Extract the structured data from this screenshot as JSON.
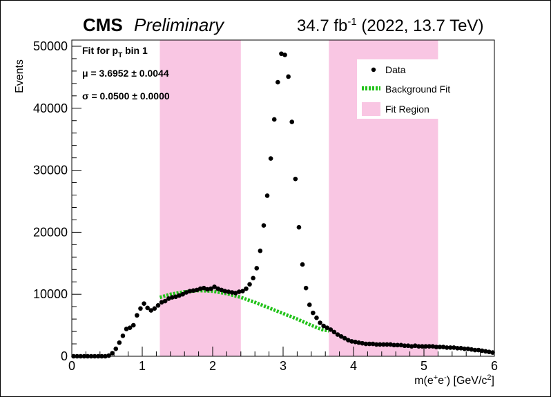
{
  "header": {
    "experiment": "CMS",
    "status": "Preliminary",
    "lumi_value": "34.7 fb",
    "lumi_exp": "-1",
    "lumi_tail": " (2022, 13.7 TeV)"
  },
  "fit_info": {
    "title_main": "Fit for p",
    "title_sub": "T",
    "title_tail": " bin 1",
    "mu_label": "μ = 3.6952",
    "mu_err": " ± 0.0044",
    "sigma_label": "σ = 0.0500",
    "sigma_err": " ± 0.0000"
  },
  "colors": {
    "data": "#000000",
    "background_fit": "#22c21a",
    "fit_region": "#f9c6e3"
  },
  "chart_data": {
    "type": "scatter",
    "title": "",
    "xlabel": "m(e+e-) [GeV/c2]",
    "ylabel": "Events",
    "xlim": [
      0,
      6
    ],
    "ylim": [
      0,
      51000
    ],
    "x_ticks": [
      0,
      1,
      2,
      3,
      4,
      5,
      6
    ],
    "y_ticks": [
      0,
      10000,
      20000,
      30000,
      40000,
      50000
    ],
    "legend": {
      "position": "top-right",
      "entries": [
        "Data",
        "Background Fit",
        "Fit Region"
      ]
    },
    "fit_regions": [
      [
        1.25,
        2.4
      ],
      [
        3.65,
        5.2
      ]
    ],
    "series": [
      {
        "name": "Data",
        "x": [
          0.025,
          0.075,
          0.125,
          0.175,
          0.225,
          0.275,
          0.325,
          0.375,
          0.425,
          0.475,
          0.525,
          0.575,
          0.625,
          0.675,
          0.725,
          0.775,
          0.825,
          0.875,
          0.925,
          0.975,
          1.025,
          1.075,
          1.125,
          1.175,
          1.225,
          1.275,
          1.325,
          1.375,
          1.425,
          1.475,
          1.525,
          1.575,
          1.625,
          1.675,
          1.725,
          1.775,
          1.825,
          1.875,
          1.925,
          1.975,
          2.025,
          2.075,
          2.125,
          2.175,
          2.225,
          2.275,
          2.325,
          2.375,
          2.425,
          2.475,
          2.525,
          2.575,
          2.625,
          2.675,
          2.725,
          2.775,
          2.825,
          2.875,
          2.925,
          2.975,
          3.025,
          3.075,
          3.125,
          3.175,
          3.225,
          3.275,
          3.325,
          3.375,
          3.425,
          3.475,
          3.525,
          3.575,
          3.625,
          3.675,
          3.725,
          3.775,
          3.825,
          3.875,
          3.925,
          3.975,
          4.025,
          4.075,
          4.125,
          4.175,
          4.225,
          4.275,
          4.325,
          4.375,
          4.425,
          4.475,
          4.525,
          4.575,
          4.625,
          4.675,
          4.725,
          4.775,
          4.825,
          4.875,
          4.925,
          4.975,
          5.025,
          5.075,
          5.125,
          5.175,
          5.225,
          5.275,
          5.325,
          5.375,
          5.425,
          5.475,
          5.525,
          5.575,
          5.625,
          5.675,
          5.725,
          5.775,
          5.825,
          5.875,
          5.925,
          5.975
        ],
        "y": [
          0,
          0,
          0,
          0,
          0,
          0,
          0,
          0,
          0,
          0,
          100,
          500,
          1200,
          2200,
          3300,
          4400,
          4600,
          5000,
          6600,
          7700,
          8500,
          7800,
          7400,
          7700,
          8200,
          8700,
          8900,
          9300,
          9500,
          9600,
          9800,
          10000,
          10300,
          10500,
          10600,
          10700,
          10900,
          11000,
          10800,
          10900,
          11200,
          10900,
          10700,
          10500,
          10400,
          10300,
          10200,
          10400,
          10500,
          10900,
          11600,
          12600,
          14200,
          17000,
          21100,
          25900,
          31900,
          38200,
          44200,
          48800,
          48600,
          45100,
          37800,
          28600,
          20800,
          14800,
          11000,
          8300,
          7000,
          6200,
          5400,
          4900,
          4600,
          4300,
          3900,
          3500,
          3200,
          2900,
          2600,
          2400,
          2300,
          2200,
          2100,
          2000,
          2000,
          2000,
          1900,
          1900,
          1900,
          1900,
          1900,
          1800,
          1800,
          1800,
          1700,
          1700,
          1600,
          1700,
          1600,
          1600,
          1600,
          1600,
          1600,
          1500,
          1500,
          1500,
          1400,
          1400,
          1400,
          1300,
          1300,
          1200,
          1200,
          1100,
          1000,
          1000,
          900,
          800,
          700,
          600
        ]
      },
      {
        "name": "Background Fit",
        "x": [
          1.25,
          1.4,
          1.6,
          1.8,
          2.0,
          2.2,
          2.4,
          2.6,
          2.8,
          3.0,
          3.2,
          3.4,
          3.55,
          3.65
        ],
        "y": [
          9500,
          10000,
          10400,
          10600,
          10500,
          10100,
          9500,
          8700,
          7800,
          6900,
          6000,
          5000,
          4300,
          4100
        ]
      }
    ]
  }
}
